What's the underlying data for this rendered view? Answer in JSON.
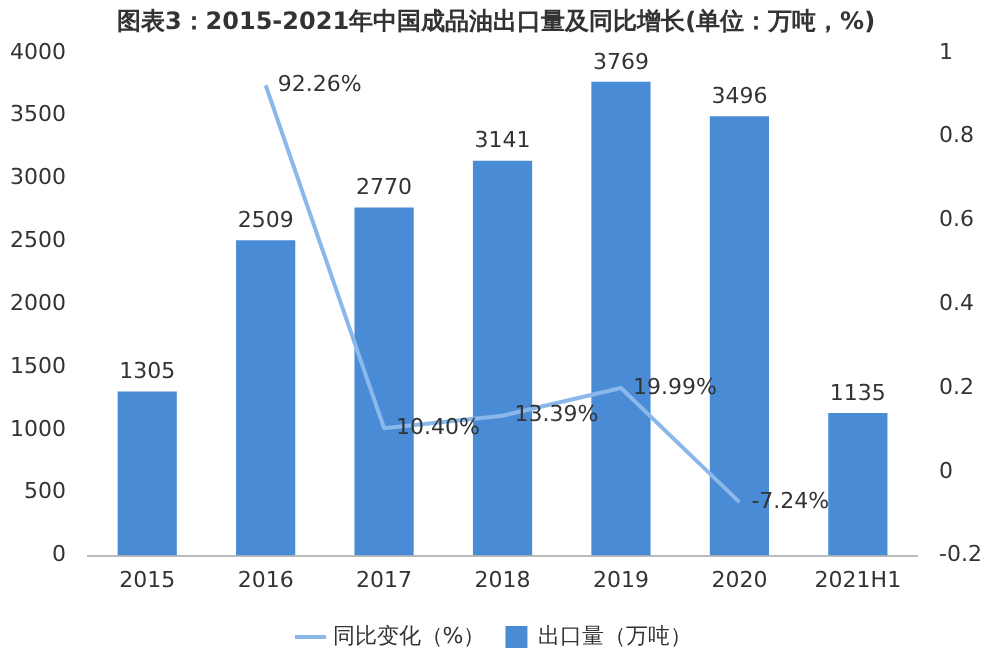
{
  "chart_data": {
    "type": "bar",
    "title": "图表3：2015-2021年中国成品油出口量及同比增长(单位：万吨，%)",
    "categories": [
      "2015",
      "2016",
      "2017",
      "2018",
      "2019",
      "2020",
      "2021H1"
    ],
    "series": [
      {
        "name": "出口量（万吨）",
        "color": "#4a8bd6",
        "values": [
          1305,
          2509,
          2770,
          3141,
          3769,
          3496,
          1135
        ]
      },
      {
        "name": "同比变化（%）",
        "type": "line",
        "axis": "y2",
        "color": "#8ab8ea",
        "values": [
          null,
          0.9226,
          0.104,
          0.1339,
          0.1999,
          -0.0724,
          null
        ],
        "value_labels": [
          null,
          "92.26%",
          "10.40%",
          "13.39%",
          "19.99%",
          "-7.24%",
          null
        ]
      }
    ],
    "data_labels": true,
    "ylim": [
      0,
      4000
    ],
    "yticks": [
      0,
      500,
      1000,
      1500,
      2000,
      2500,
      3000,
      3500,
      4000
    ],
    "y2lim": [
      -0.2,
      1
    ],
    "y2ticks": [
      -0.2,
      0,
      0.2,
      0.4,
      0.6,
      0.8,
      1
    ],
    "legend": "bottom"
  }
}
